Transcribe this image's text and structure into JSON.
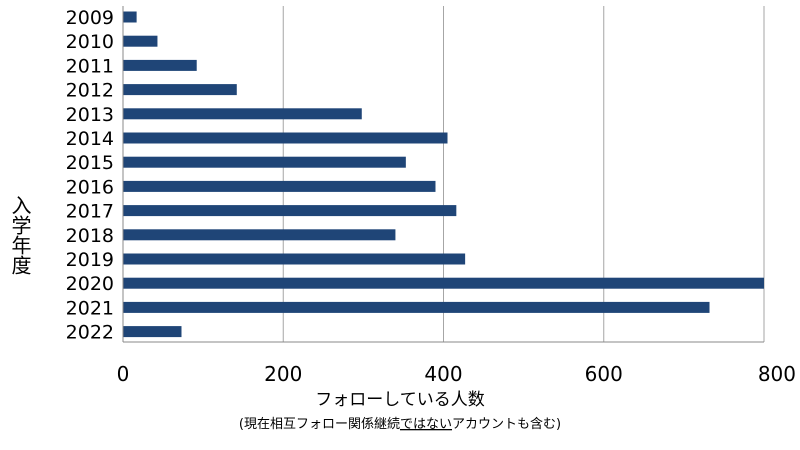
{
  "chart_data": {
    "type": "bar",
    "orientation": "horizontal",
    "categories": [
      "2009",
      "2010",
      "2011",
      "2012",
      "2013",
      "2014",
      "2015",
      "2016",
      "2017",
      "2018",
      "2019",
      "2020",
      "2021",
      "2022"
    ],
    "values": [
      17,
      43,
      92,
      142,
      298,
      405,
      353,
      390,
      416,
      340,
      427,
      800,
      732,
      73
    ],
    "ylabel": "入学年度",
    "xlabel": "フォローしている人数",
    "xlabel_note_before": "(現在相互フォロー関係継続",
    "xlabel_note_underlined": "ではない",
    "xlabel_note_after": "アカウントも含む)",
    "x_ticks": [
      "0",
      "200",
      "400",
      "600",
      "800"
    ],
    "xlim": [
      0,
      800
    ],
    "grid": "vertical",
    "bar_color": "#1f4577"
  }
}
